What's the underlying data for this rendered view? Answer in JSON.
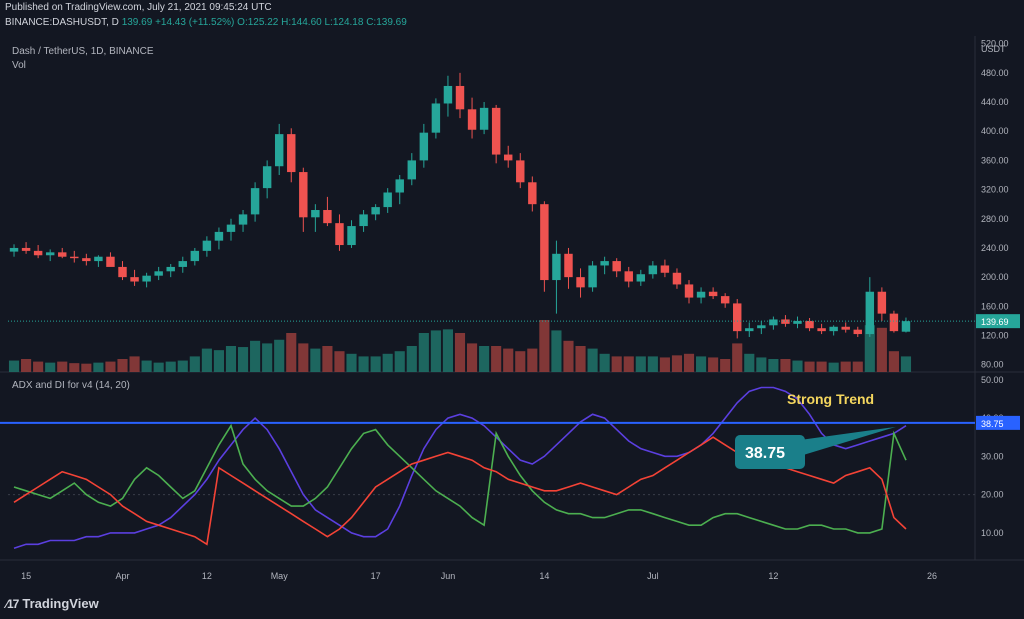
{
  "header": {
    "published": "Published on TradingView.com, July 21, 2021 09:45:24 UTC",
    "symbol": "BINANCE:DASHUSDT, D",
    "last": "139.69",
    "change": "+14.43 (+11.52%)",
    "o": "O:125.22",
    "h": "H:144.60",
    "l": "L:124.18",
    "c": "C:139.69"
  },
  "pane_titles": {
    "main": "Dash / TetherUS, 1D, BINANCE",
    "vol": "Vol",
    "adx": "ADX and DI for v4 (14, 20)"
  },
  "footer": {
    "brand": "TradingView",
    "logo": "tradingview-logo"
  },
  "colors": {
    "up": "#26a69a",
    "down": "#ef5350",
    "adx": "#5b3fe0",
    "plus_di": "#4caf50",
    "minus_di": "#f44336",
    "line": "#2962ff",
    "annot": "#1a7f8a",
    "gold": "#f5d75e"
  },
  "chart_data": [
    {
      "type": "candlestick",
      "title": "Dash / TetherUS, 1D, BINANCE",
      "unit": "USDT",
      "y_ticks": [
        "80.00",
        "120.00",
        "160.00",
        "200.00",
        "240.00",
        "280.00",
        "320.00",
        "360.00",
        "400.00",
        "440.00",
        "480.00",
        "520.00"
      ],
      "ylim": [
        70,
        525
      ],
      "x_ticks": [
        "15",
        "Apr",
        "12",
        "May",
        "17",
        "Jun",
        "14",
        "Jul",
        "12",
        "26"
      ],
      "last_price_label": "139.69",
      "candles_ohlc_approx": [
        [
          235,
          245,
          228,
          240
        ],
        [
          240,
          248,
          232,
          236
        ],
        [
          236,
          244,
          226,
          230
        ],
        [
          230,
          238,
          222,
          234
        ],
        [
          234,
          240,
          226,
          228
        ],
        [
          228,
          236,
          220,
          226
        ],
        [
          226,
          232,
          216,
          222
        ],
        [
          222,
          230,
          214,
          228
        ],
        [
          228,
          234,
          218,
          214
        ],
        [
          214,
          222,
          196,
          200
        ],
        [
          200,
          210,
          188,
          194
        ],
        [
          194,
          206,
          186,
          202
        ],
        [
          202,
          214,
          196,
          208
        ],
        [
          208,
          218,
          200,
          214
        ],
        [
          214,
          228,
          206,
          222
        ],
        [
          222,
          240,
          216,
          236
        ],
        [
          236,
          256,
          228,
          250
        ],
        [
          250,
          268,
          238,
          262
        ],
        [
          262,
          280,
          250,
          272
        ],
        [
          272,
          292,
          262,
          286
        ],
        [
          286,
          330,
          276,
          322
        ],
        [
          322,
          360,
          308,
          352
        ],
        [
          352,
          410,
          340,
          396
        ],
        [
          396,
          404,
          330,
          344
        ],
        [
          344,
          350,
          262,
          282
        ],
        [
          282,
          300,
          262,
          292
        ],
        [
          292,
          310,
          270,
          274
        ],
        [
          274,
          286,
          236,
          244
        ],
        [
          244,
          278,
          240,
          270
        ],
        [
          270,
          292,
          262,
          286
        ],
        [
          286,
          300,
          278,
          296
        ],
        [
          296,
          322,
          288,
          316
        ],
        [
          316,
          340,
          300,
          334
        ],
        [
          334,
          370,
          326,
          360
        ],
        [
          360,
          410,
          350,
          398
        ],
        [
          398,
          445,
          390,
          438
        ],
        [
          438,
          476,
          420,
          462
        ],
        [
          462,
          480,
          418,
          430
        ],
        [
          430,
          446,
          390,
          402
        ],
        [
          402,
          440,
          396,
          432
        ],
        [
          432,
          436,
          356,
          368
        ],
        [
          368,
          380,
          350,
          360
        ],
        [
          360,
          370,
          322,
          330
        ],
        [
          330,
          338,
          290,
          300
        ],
        [
          300,
          304,
          180,
          196
        ],
        [
          196,
          250,
          150,
          232
        ],
        [
          232,
          240,
          184,
          200
        ],
        [
          200,
          212,
          172,
          186
        ],
        [
          186,
          222,
          180,
          216
        ],
        [
          216,
          228,
          204,
          222
        ],
        [
          222,
          226,
          200,
          208
        ],
        [
          208,
          214,
          186,
          194
        ],
        [
          194,
          210,
          188,
          204
        ],
        [
          204,
          222,
          198,
          216
        ],
        [
          216,
          224,
          200,
          206
        ],
        [
          206,
          212,
          184,
          190
        ],
        [
          190,
          196,
          164,
          172
        ],
        [
          172,
          186,
          164,
          180
        ],
        [
          180,
          186,
          170,
          174
        ],
        [
          174,
          178,
          158,
          164
        ],
        [
          164,
          170,
          116,
          126
        ],
        [
          126,
          138,
          118,
          130
        ],
        [
          130,
          140,
          122,
          134
        ],
        [
          134,
          146,
          128,
          142
        ],
        [
          142,
          148,
          132,
          136
        ],
        [
          136,
          146,
          130,
          140
        ],
        [
          140,
          144,
          126,
          130
        ],
        [
          130,
          136,
          122,
          126
        ],
        [
          126,
          134,
          120,
          132
        ],
        [
          132,
          138,
          124,
          128
        ],
        [
          128,
          132,
          118,
          122
        ],
        [
          122,
          200,
          118,
          180
        ],
        [
          180,
          186,
          140,
          150
        ],
        [
          150,
          154,
          124,
          126
        ],
        [
          125.22,
          144.6,
          124.18,
          139.69
        ]
      ]
    },
    {
      "type": "bar",
      "title": "Vol",
      "note": "volume histogram, relative heights (0-1)",
      "values_rel": [
        0.22,
        0.25,
        0.2,
        0.18,
        0.2,
        0.17,
        0.16,
        0.18,
        0.2,
        0.25,
        0.3,
        0.22,
        0.18,
        0.2,
        0.22,
        0.3,
        0.45,
        0.42,
        0.5,
        0.48,
        0.6,
        0.55,
        0.62,
        0.75,
        0.55,
        0.45,
        0.5,
        0.4,
        0.35,
        0.3,
        0.3,
        0.35,
        0.4,
        0.5,
        0.75,
        0.8,
        0.82,
        0.75,
        0.55,
        0.5,
        0.5,
        0.45,
        0.4,
        0.45,
        1.0,
        0.8,
        0.6,
        0.5,
        0.45,
        0.35,
        0.3,
        0.3,
        0.3,
        0.3,
        0.28,
        0.32,
        0.35,
        0.3,
        0.28,
        0.25,
        0.55,
        0.35,
        0.28,
        0.25,
        0.25,
        0.22,
        0.2,
        0.2,
        0.18,
        0.2,
        0.2,
        0.9,
        0.85,
        0.4,
        0.3
      ]
    },
    {
      "type": "line",
      "title": "ADX and DI for v4 (14, 20)",
      "y_ticks": [
        "10.00",
        "20.00",
        "30.00",
        "40.00",
        "50.00"
      ],
      "ylim": [
        5,
        51
      ],
      "threshold": 38.75,
      "threshold_label": "38.75",
      "annotations": [
        {
          "text": "Strong Trend"
        },
        {
          "text": "38.75"
        }
      ],
      "series": [
        {
          "name": "ADX",
          "values": [
            6,
            7,
            7,
            8,
            8,
            8,
            9,
            9,
            10,
            10,
            10,
            11,
            12,
            14,
            17,
            20,
            24,
            29,
            33,
            37,
            40,
            37,
            32,
            26,
            20,
            16,
            14,
            12,
            10,
            9,
            9,
            11,
            17,
            25,
            32,
            37,
            40,
            41,
            40,
            38,
            35,
            32,
            29,
            28,
            30,
            33,
            36,
            39,
            41,
            40,
            37,
            34,
            32,
            31,
            30,
            30,
            31,
            33,
            36,
            40,
            44,
            47,
            48,
            48,
            47,
            45,
            41,
            36,
            33,
            32,
            33,
            34,
            35,
            36,
            38
          ]
        },
        {
          "name": "+DI",
          "values": [
            22,
            21,
            20,
            19,
            21,
            23,
            20,
            18,
            17,
            19,
            24,
            27,
            25,
            22,
            19,
            21,
            27,
            33,
            38,
            28,
            24,
            21,
            19,
            17,
            17,
            19,
            22,
            27,
            32,
            36,
            37,
            33,
            30,
            27,
            24,
            21,
            19,
            17,
            14,
            12,
            36,
            30,
            25,
            21,
            18,
            16,
            15,
            15,
            14,
            14,
            15,
            16,
            16,
            15,
            14,
            13,
            12,
            12,
            14,
            15,
            15,
            14,
            13,
            12,
            11,
            11,
            12,
            12,
            11,
            11,
            10,
            10,
            11,
            36,
            29
          ]
        },
        {
          "name": "-DI",
          "values": [
            18,
            20,
            22,
            24,
            26,
            25,
            24,
            22,
            20,
            17,
            15,
            13,
            12,
            11,
            10,
            9,
            7,
            27,
            25,
            23,
            21,
            19,
            17,
            15,
            13,
            11,
            9,
            11,
            14,
            18,
            22,
            24,
            26,
            28,
            29,
            30,
            31,
            30,
            29,
            27,
            26,
            24,
            23,
            22,
            21,
            21,
            22,
            23,
            22,
            21,
            20,
            22,
            24,
            25,
            27,
            29,
            31,
            33,
            35,
            33,
            31,
            30,
            29,
            28,
            27,
            26,
            25,
            24,
            23,
            25,
            26,
            27,
            24,
            14,
            11
          ]
        }
      ]
    }
  ]
}
